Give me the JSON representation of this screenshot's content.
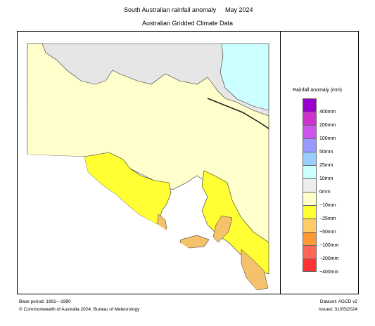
{
  "title": {
    "main": "South Australian rainfall anomaly",
    "period": "May 2024"
  },
  "subtitle": "Australian Gridded Climate Data",
  "legend": {
    "title": "Rainfall anomaly (mm)",
    "colors": [
      "#9900cc",
      "#cc33cc",
      "#cc55ee",
      "#9999ff",
      "#99ccff",
      "#ccffff",
      "#eeeeee",
      "#ffffcc",
      "#ffff33",
      "#ffcc66",
      "#ff9933",
      "#ff6655",
      "#ff3333"
    ],
    "labels": [
      "400mm",
      "200mm",
      "100mm",
      "50mm",
      "25mm",
      "10mm",
      "0mm",
      "−10mm",
      "−25mm",
      "−50mm",
      "−100mm",
      "−200mm",
      "−400mm"
    ]
  },
  "map_colors": {
    "land_dry": "#ffffcc",
    "land_neutral": "#e6e6e6",
    "land_moderate": "#ffff33",
    "land_low": "#f5c26b",
    "water": "#ccffff",
    "border": "#222222"
  },
  "footer": {
    "base_period": "Base period: 1961—1990",
    "copyright": "© Commonwealth of Australia 2024, Bureau of Meteorology",
    "dataset": "Dataset: AGCD v2",
    "issued": "Issued: 31/05/2024"
  }
}
